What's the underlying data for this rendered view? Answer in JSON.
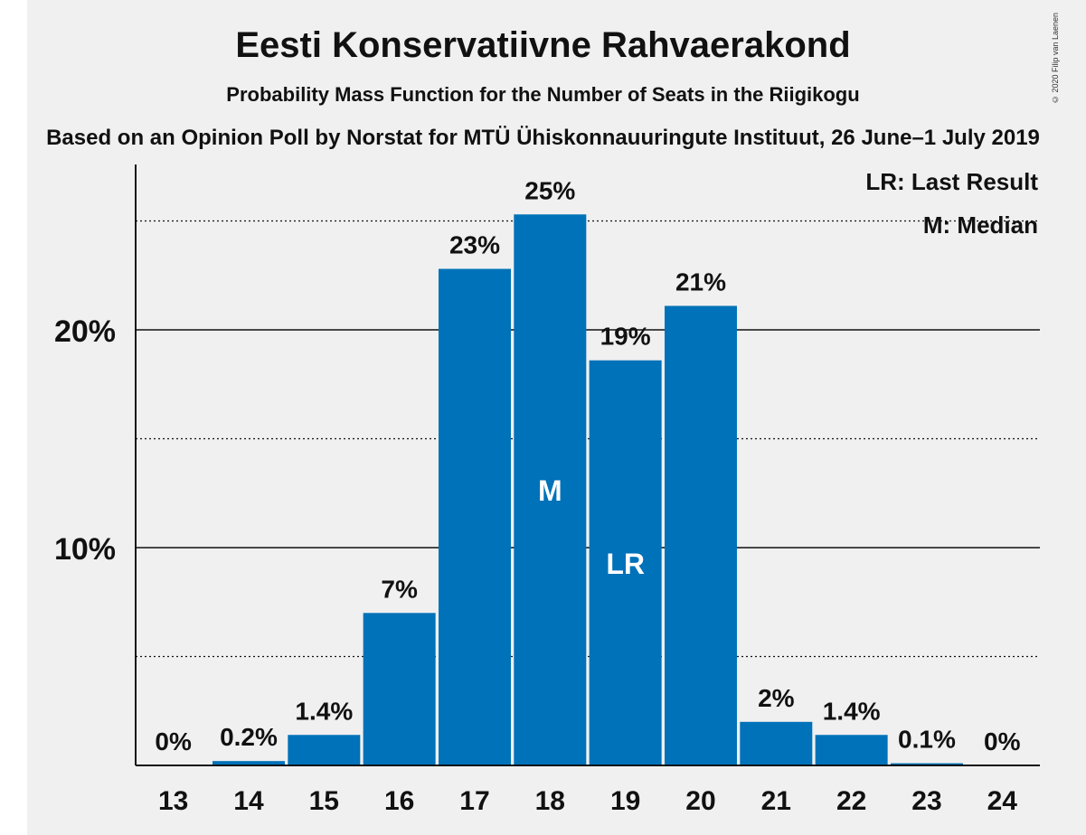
{
  "copyright": "© 2020 Filip van Laenen",
  "chart_data": {
    "type": "bar",
    "title": "Eesti Konservatiivne Rahvaerakond",
    "subtitle": "Probability Mass Function for the Number of Seats in the Riigikogu",
    "source": "Based on an Opinion Poll by Norstat for MTÜ Ühiskonnauuringute Instituut, 26 June–1 July 2019",
    "xlabel": "",
    "ylabel": "",
    "categories": [
      "13",
      "14",
      "15",
      "16",
      "17",
      "18",
      "19",
      "20",
      "21",
      "22",
      "23",
      "24"
    ],
    "values": [
      0,
      0.2,
      1.4,
      7,
      22.8,
      25.3,
      18.6,
      21.1,
      2.0,
      1.4,
      0.1,
      0
    ],
    "data_labels": [
      "0%",
      "0.2%",
      "1.4%",
      "7%",
      "23%",
      "25%",
      "19%",
      "21%",
      "2%",
      "1.4%",
      "0.1%",
      "0%"
    ],
    "bar_markers": {
      "18": "M",
      "19": "LR"
    },
    "ylim": [
      0,
      27.5
    ],
    "y_ticks": [
      {
        "value": 10,
        "label": "10%"
      },
      {
        "value": 20,
        "label": "20%"
      }
    ],
    "minor_gridlines": [
      5,
      15,
      25
    ],
    "grid": true,
    "legend": [
      "LR: Last Result",
      "M: Median"
    ],
    "legend_position": "top-right",
    "colors": {
      "bar": "#0072b9",
      "marker_text": "#ffffff",
      "text": "#111111",
      "grid": "#111111"
    }
  }
}
